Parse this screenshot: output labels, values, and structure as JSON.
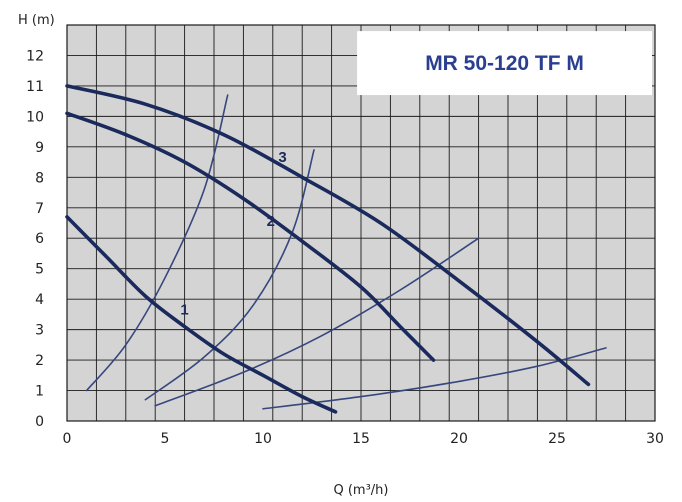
{
  "chart_data": {
    "type": "line",
    "title": "MR 50-120 TF M",
    "xlabel": "Q (m³/h)",
    "ylabel": "H (m)",
    "xlim": [
      0,
      30
    ],
    "ylim": [
      0,
      13
    ],
    "x_ticks": [
      "0",
      "5",
      "10",
      "15",
      "20",
      "25",
      "30"
    ],
    "y_ticks": [
      "0",
      "1",
      "2",
      "3",
      "4",
      "5",
      "6",
      "7",
      "8",
      "9",
      "10",
      "11",
      "12"
    ],
    "grid": true,
    "series": [
      {
        "name": "1",
        "kind": "pump-curve",
        "points": [
          [
            0,
            6.7
          ],
          [
            2,
            5.4
          ],
          [
            4,
            4.1
          ],
          [
            6,
            3.1
          ],
          [
            8,
            2.2
          ],
          [
            10,
            1.5
          ],
          [
            12,
            0.8
          ],
          [
            13.7,
            0.3
          ]
        ]
      },
      {
        "name": "2",
        "kind": "pump-curve",
        "points": [
          [
            0,
            10.1
          ],
          [
            3,
            9.4
          ],
          [
            6,
            8.5
          ],
          [
            9,
            7.3
          ],
          [
            12,
            5.9
          ],
          [
            15,
            4.4
          ],
          [
            17,
            3.1
          ],
          [
            18.7,
            2.0
          ]
        ]
      },
      {
        "name": "3",
        "kind": "pump-curve",
        "points": [
          [
            0,
            11.0
          ],
          [
            4,
            10.4
          ],
          [
            8,
            9.4
          ],
          [
            12,
            8.0
          ],
          [
            16,
            6.5
          ],
          [
            20,
            4.6
          ],
          [
            24,
            2.6
          ],
          [
            26.6,
            1.2
          ]
        ]
      },
      {
        "name": "",
        "kind": "system-curve",
        "points": [
          [
            1,
            1.0
          ],
          [
            3,
            2.5
          ],
          [
            5,
            4.7
          ],
          [
            7,
            7.6
          ],
          [
            8.2,
            10.7
          ]
        ]
      },
      {
        "name": "",
        "kind": "system-curve",
        "points": [
          [
            4,
            0.7
          ],
          [
            7,
            2.1
          ],
          [
            9.5,
            3.8
          ],
          [
            11.5,
            6.2
          ],
          [
            12.6,
            8.9
          ]
        ]
      },
      {
        "name": "",
        "kind": "system-curve",
        "points": [
          [
            4.5,
            0.5
          ],
          [
            9,
            1.6
          ],
          [
            13,
            2.8
          ],
          [
            17,
            4.3
          ],
          [
            21,
            6.0
          ]
        ]
      },
      {
        "name": "",
        "kind": "system-curve",
        "points": [
          [
            10,
            0.4
          ],
          [
            15,
            0.8
          ],
          [
            20,
            1.3
          ],
          [
            24,
            1.8
          ],
          [
            27.5,
            2.4
          ]
        ]
      }
    ],
    "curve_labels": [
      {
        "text": "1",
        "x": 6.0,
        "y": 3.5
      },
      {
        "text": "2",
        "x": 10.4,
        "y": 6.4
      },
      {
        "text": "3",
        "x": 11.0,
        "y": 8.5
      }
    ],
    "colors": {
      "plot_background": "#d4d4d4",
      "grid": "#1a1a1a",
      "pump_curve": "#1b2a5c",
      "system_curve": "#36477e",
      "title": "#2a3f8f",
      "label": "#1b2a5c"
    }
  }
}
